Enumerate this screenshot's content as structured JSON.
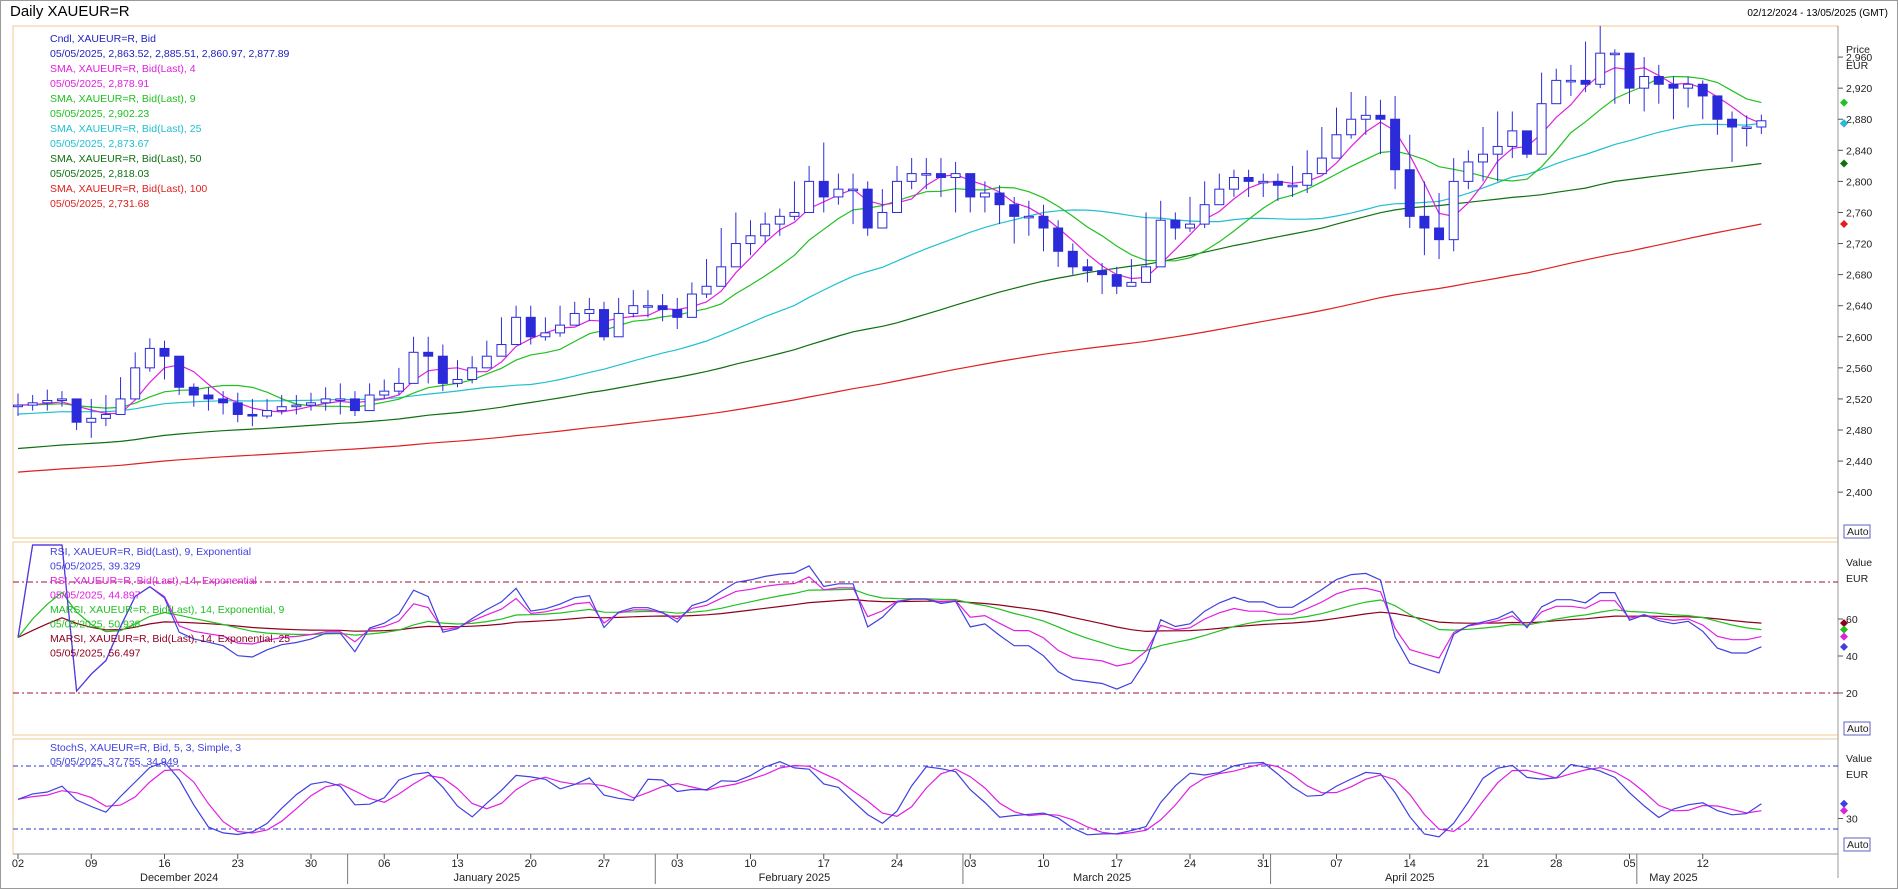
{
  "header": {
    "title": "Daily XAUEUR=R",
    "date_range": "02/12/2024 - 13/05/2025 (GMT)"
  },
  "panels": {
    "price": {
      "axis_title": "Price",
      "axis_unit": "EUR",
      "auto_label": "Auto"
    },
    "rsi": {
      "axis_title": "Value",
      "axis_unit": "EUR",
      "auto_label": "Auto"
    },
    "stoch": {
      "axis_title": "Value",
      "axis_unit": "EUR",
      "auto_label": "Auto"
    }
  },
  "colors": {
    "candle": "#2b2bd9",
    "sma4": "#e020e0",
    "sma9": "#20c020",
    "sma25": "#20c0d0",
    "sma50": "#107010",
    "sma100": "#e02020",
    "rsi9": "#4040e0",
    "rsi14": "#e020e0",
    "marsi9": "#20c020",
    "marsi25": "#900020",
    "stochK": "#4040e0",
    "stochD": "#e020e0",
    "refline": "#a01030",
    "stochref": "#3030d0",
    "panel_border": "#f2c890",
    "legend_value": "#c00000"
  },
  "chart_data": [
    {
      "type": "candlestick",
      "panel": "price",
      "ylim": [
        2350,
        3000
      ],
      "yticks": [
        2400,
        2440,
        2480,
        2520,
        2560,
        2600,
        2640,
        2680,
        2720,
        2760,
        2800,
        2840,
        2880,
        2920,
        2960
      ],
      "ytick_labels": [
        "2,400",
        "2,440",
        "2,480",
        "2,520",
        "2,560",
        "2,600",
        "2,640",
        "2,680",
        "2,720",
        "2,760",
        "2,800",
        "2,840",
        "2,880",
        "2,920",
        "2,960"
      ],
      "legend": [
        {
          "name": "Cndl, XAUEUR=R, Bid",
          "value": "05/05/2025, 2,863.52, 2,885.51, 2,860.97, 2,877.89",
          "color_key": "candle"
        },
        {
          "name": "SMA, XAUEUR=R, Bid(Last),  4",
          "value": "05/05/2025, 2,878.91",
          "color_key": "sma4"
        },
        {
          "name": "SMA, XAUEUR=R, Bid(Last),  9",
          "value": "05/05/2025, 2,902.23",
          "color_key": "sma9"
        },
        {
          "name": "SMA, XAUEUR=R, Bid(Last),  25",
          "value": "05/05/2025, 2,873.67",
          "color_key": "sma25"
        },
        {
          "name": "SMA, XAUEUR=R, Bid(Last),  50",
          "value": "05/05/2025, 2,818.03",
          "color_key": "sma50"
        },
        {
          "name": "SMA, XAUEUR=R, Bid(Last),  100",
          "value": "05/05/2025, 2,731.68",
          "color_key": "sma100"
        }
      ],
      "closes": [
        2512,
        2515,
        2518,
        2520,
        2490,
        2495,
        2500,
        2520,
        2560,
        2585,
        2575,
        2535,
        2525,
        2520,
        2515,
        2500,
        2498,
        2505,
        2510,
        2512,
        2515,
        2520,
        2520,
        2505,
        2525,
        2530,
        2540,
        2580,
        2575,
        2540,
        2545,
        2560,
        2575,
        2590,
        2625,
        2600,
        2605,
        2615,
        2630,
        2635,
        2600,
        2630,
        2640,
        2640,
        2635,
        2625,
        2655,
        2665,
        2690,
        2720,
        2730,
        2745,
        2755,
        2760,
        2800,
        2780,
        2790,
        2790,
        2740,
        2760,
        2800,
        2810,
        2810,
        2805,
        2810,
        2780,
        2785,
        2770,
        2755,
        2755,
        2740,
        2710,
        2690,
        2685,
        2680,
        2665,
        2670,
        2690,
        2750,
        2740,
        2745,
        2770,
        2790,
        2805,
        2800,
        2800,
        2795,
        2795,
        2810,
        2830,
        2860,
        2880,
        2885,
        2880,
        2815,
        2755,
        2740,
        2725,
        2800,
        2825,
        2835,
        2845,
        2865,
        2835,
        2900,
        2930,
        2930,
        2925,
        2965,
        2965,
        2920,
        2935,
        2925,
        2920,
        2925,
        2910,
        2880,
        2870,
        2870,
        2878
      ],
      "highs": [
        2527,
        2525,
        2532,
        2530,
        2515,
        2520,
        2525,
        2548,
        2580,
        2598,
        2595,
        2570,
        2540,
        2535,
        2530,
        2528,
        2520,
        2520,
        2525,
        2525,
        2528,
        2535,
        2540,
        2530,
        2540,
        2545,
        2560,
        2600,
        2600,
        2590,
        2570,
        2575,
        2595,
        2625,
        2640,
        2640,
        2625,
        2640,
        2645,
        2650,
        2645,
        2650,
        2660,
        2660,
        2655,
        2650,
        2670,
        2700,
        2740,
        2760,
        2750,
        2760,
        2765,
        2800,
        2820,
        2850,
        2810,
        2810,
        2800,
        2790,
        2820,
        2830,
        2830,
        2830,
        2825,
        2810,
        2800,
        2795,
        2780,
        2775,
        2770,
        2750,
        2720,
        2700,
        2695,
        2690,
        2700,
        2760,
        2775,
        2760,
        2780,
        2800,
        2810,
        2815,
        2815,
        2810,
        2810,
        2820,
        2840,
        2870,
        2895,
        2915,
        2910,
        2905,
        2910,
        2860,
        2800,
        2785,
        2830,
        2840,
        2870,
        2890,
        2890,
        2850,
        2940,
        2945,
        2950,
        2980,
        3000,
        2970,
        2965,
        2960,
        2950,
        2935,
        2935,
        2930,
        2905,
        2890,
        2885,
        2886
      ],
      "lows": [
        2498,
        2505,
        2505,
        2510,
        2480,
        2470,
        2485,
        2505,
        2530,
        2555,
        2545,
        2525,
        2510,
        2505,
        2500,
        2490,
        2485,
        2495,
        2500,
        2500,
        2505,
        2505,
        2500,
        2498,
        2505,
        2520,
        2525,
        2540,
        2540,
        2530,
        2535,
        2540,
        2560,
        2580,
        2590,
        2590,
        2595,
        2600,
        2620,
        2620,
        2595,
        2605,
        2625,
        2625,
        2620,
        2610,
        2625,
        2650,
        2680,
        2700,
        2705,
        2720,
        2730,
        2750,
        2760,
        2760,
        2770,
        2745,
        2730,
        2740,
        2770,
        2790,
        2790,
        2780,
        2760,
        2760,
        2760,
        2745,
        2720,
        2730,
        2710,
        2690,
        2680,
        2670,
        2655,
        2655,
        2665,
        2685,
        2720,
        2725,
        2735,
        2740,
        2770,
        2780,
        2780,
        2780,
        2775,
        2780,
        2785,
        2810,
        2830,
        2855,
        2860,
        2835,
        2790,
        2740,
        2705,
        2700,
        2710,
        2790,
        2800,
        2800,
        2830,
        2830,
        2835,
        2905,
        2910,
        2915,
        2920,
        2900,
        2900,
        2890,
        2900,
        2880,
        2895,
        2880,
        2860,
        2825,
        2845,
        2861
      ]
    },
    {
      "type": "line",
      "panel": "rsi",
      "ylim": [
        0,
        100
      ],
      "yticks": [
        20,
        40,
        60
      ],
      "ytick_labels": [
        "20",
        "40",
        "60"
      ],
      "reference_lines": [
        80,
        20
      ],
      "legend": [
        {
          "name": "RSI, XAUEUR=R, Bid(Last),  9, Exponential",
          "value": "05/05/2025, 39.329",
          "color_key": "rsi9"
        },
        {
          "name": "RSI, XAUEUR=R, Bid(Last),  14, Exponential",
          "value": "05/05/2025, 44.897",
          "color_key": "rsi14"
        },
        {
          "name": "MARSI, XAUEUR=R, Bid(Last),  14, Exponential, 9",
          "value": "05/05/2025, 50.938",
          "color_key": "marsi9"
        },
        {
          "name": "MARSI, XAUEUR=R, Bid(Last),  14, Exponential, 25",
          "value": "05/05/2025, 56.497",
          "color_key": "marsi25"
        }
      ]
    },
    {
      "type": "line",
      "panel": "stoch",
      "ylim": [
        0,
        100
      ],
      "yticks": [
        30
      ],
      "ytick_labels": [
        "30"
      ],
      "reference_lines": [
        80,
        20
      ],
      "legend": [
        {
          "name": "StochS, XAUEUR=R, Bid,  5, 3, Simple, 3",
          "value": "05/05/2025, 37.755, 34.949",
          "color_key": "stochK"
        }
      ]
    }
  ],
  "xaxis": {
    "day_ticks": [
      {
        "label": "02",
        "index": 0
      },
      {
        "label": "09",
        "index": 5
      },
      {
        "label": "16",
        "index": 10
      },
      {
        "label": "23",
        "index": 15
      },
      {
        "label": "30",
        "index": 20
      },
      {
        "label": "06",
        "index": 25
      },
      {
        "label": "13",
        "index": 30
      },
      {
        "label": "20",
        "index": 35
      },
      {
        "label": "27",
        "index": 40
      },
      {
        "label": "03",
        "index": 45
      },
      {
        "label": "10",
        "index": 50
      },
      {
        "label": "17",
        "index": 55
      },
      {
        "label": "24",
        "index": 60
      },
      {
        "label": "03",
        "index": 65
      },
      {
        "label": "10",
        "index": 70
      },
      {
        "label": "17",
        "index": 75
      },
      {
        "label": "24",
        "index": 80
      },
      {
        "label": "31",
        "index": 85
      },
      {
        "label": "07",
        "index": 90
      },
      {
        "label": "14",
        "index": 95
      },
      {
        "label": "21",
        "index": 100
      },
      {
        "label": "28",
        "index": 105
      },
      {
        "label": "05",
        "index": 110
      },
      {
        "label": "12",
        "index": 115
      }
    ],
    "months": [
      {
        "label": "December 2024",
        "index": 11
      },
      {
        "label": "January 2025",
        "index": 32
      },
      {
        "label": "February 2025",
        "index": 53
      },
      {
        "label": "March 2025",
        "index": 74
      },
      {
        "label": "April 2025",
        "index": 95
      },
      {
        "label": "May 2025",
        "index": 113
      }
    ]
  }
}
